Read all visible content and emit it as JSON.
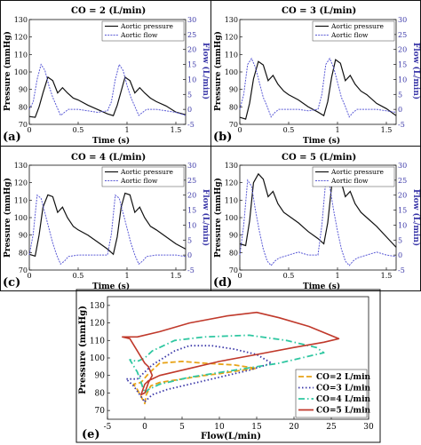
{
  "chart_data": [
    {
      "panel_letter": "(a)",
      "type": "line",
      "title": "CO = 2 (L/min)",
      "xlabel": "Time (s)",
      "ylabel": "Pressure (mmHg)",
      "y2label": "Flow (L/min)",
      "xlim": [
        0,
        1.6
      ],
      "ylim": [
        70,
        130
      ],
      "y2lim": [
        -5,
        30
      ],
      "xticks": [
        "0",
        "0.5",
        "1",
        "1.5"
      ],
      "yticks": [
        "70",
        "80",
        "90",
        "100",
        "110",
        "120",
        "130"
      ],
      "y2ticks": [
        "-5",
        "0",
        "5",
        "10",
        "15",
        "20",
        "25",
        "30"
      ],
      "legend": [
        "Aortic pressure",
        "Aortic flow"
      ],
      "legend_position": "top-right",
      "series": [
        {
          "name": "Aortic pressure",
          "axis": "left",
          "x": [
            0,
            0.06,
            0.1,
            0.14,
            0.19,
            0.24,
            0.29,
            0.34,
            0.39,
            0.45,
            0.5,
            0.6,
            0.7,
            0.8,
            0.86,
            0.9,
            0.94,
            0.98,
            1.03,
            1.08,
            1.13,
            1.18,
            1.24,
            1.3,
            1.4,
            1.5,
            1.6
          ],
          "y": [
            74.5,
            74,
            80,
            88,
            97,
            95,
            88,
            91,
            88,
            85,
            84,
            81,
            78.5,
            76,
            75,
            81,
            89,
            97,
            95,
            88,
            91,
            88,
            85,
            83,
            80.5,
            77,
            75.5
          ]
        },
        {
          "name": "Aortic flow",
          "axis": "right",
          "x": [
            0,
            0.04,
            0.08,
            0.12,
            0.16,
            0.2,
            0.24,
            0.28,
            0.32,
            0.36,
            0.4,
            0.5,
            0.6,
            0.7,
            0.8,
            0.84,
            0.88,
            0.92,
            0.96,
            1.0,
            1.04,
            1.08,
            1.12,
            1.16,
            1.2,
            1.3,
            1.4,
            1.5,
            1.6
          ],
          "y": [
            0,
            2.5,
            10,
            15,
            13,
            8,
            4,
            1,
            -2,
            -1,
            0,
            0,
            -0.5,
            -1,
            -0.5,
            2.5,
            10,
            15,
            13,
            8,
            4,
            1,
            -2,
            -1,
            0,
            0,
            -0.5,
            -1,
            -2
          ]
        }
      ]
    },
    {
      "panel_letter": "(b)",
      "type": "line",
      "title": "CO = 3 (L/min)",
      "xlabel": "Time (s)",
      "ylabel": "Pressure (mmHg)",
      "y2label": "Flow (L/min)",
      "xlim": [
        0,
        1.6
      ],
      "ylim": [
        70,
        130
      ],
      "y2lim": [
        -5,
        30
      ],
      "xticks": [
        "0",
        "0.5",
        "1",
        "1.5"
      ],
      "yticks": [
        "70",
        "80",
        "90",
        "100",
        "110",
        "120",
        "130"
      ],
      "y2ticks": [
        "-5",
        "0",
        "5",
        "10",
        "15",
        "20",
        "25",
        "30"
      ],
      "legend": [
        "Aortic pressure",
        "Aortic flow"
      ],
      "legend_position": "top-right",
      "series": [
        {
          "name": "Aortic pressure",
          "axis": "left",
          "x": [
            0,
            0.06,
            0.1,
            0.14,
            0.19,
            0.24,
            0.29,
            0.34,
            0.39,
            0.45,
            0.5,
            0.6,
            0.7,
            0.8,
            0.86,
            0.9,
            0.94,
            0.98,
            1.03,
            1.08,
            1.13,
            1.18,
            1.24,
            1.3,
            1.4,
            1.5,
            1.6
          ],
          "y": [
            74,
            73,
            82,
            96,
            106,
            104,
            95,
            98,
            93,
            89,
            87,
            84,
            80,
            77,
            75,
            83,
            97,
            107,
            105,
            95,
            98,
            93,
            89,
            87,
            82,
            79,
            75
          ]
        },
        {
          "name": "Aortic flow",
          "axis": "right",
          "x": [
            0,
            0.04,
            0.08,
            0.12,
            0.16,
            0.2,
            0.24,
            0.28,
            0.32,
            0.36,
            0.4,
            0.5,
            0.6,
            0.7,
            0.8,
            0.84,
            0.88,
            0.92,
            0.96,
            1.0,
            1.04,
            1.08,
            1.12,
            1.16,
            1.2,
            1.3,
            1.4,
            1.5,
            1.6
          ],
          "y": [
            0,
            5,
            15,
            17,
            14,
            9,
            4,
            1,
            -2.5,
            -1,
            0,
            0,
            0,
            -0.5,
            0,
            5,
            15,
            17,
            14,
            9,
            4,
            1,
            -2.5,
            -1,
            0,
            0,
            0,
            -0.5,
            -1
          ]
        }
      ]
    },
    {
      "panel_letter": "(c)",
      "type": "line",
      "title": "CO = 4 (L/min)",
      "xlabel": "Time (s)",
      "ylabel": "Pressure (mmHg)",
      "y2label": "Flow (L/min)",
      "xlim": [
        0,
        1.6
      ],
      "ylim": [
        70,
        130
      ],
      "y2lim": [
        -5,
        30
      ],
      "xticks": [
        "0",
        "0.5",
        "1",
        "1.5"
      ],
      "yticks": [
        "70",
        "80",
        "90",
        "100",
        "110",
        "120",
        "130"
      ],
      "y2ticks": [
        "-5",
        "0",
        "5",
        "10",
        "15",
        "20",
        "25",
        "30"
      ],
      "legend": [
        "Aortic pressure",
        "Aortic flow"
      ],
      "legend_position": "top-right",
      "series": [
        {
          "name": "Aortic pressure",
          "axis": "left",
          "x": [
            0,
            0.06,
            0.1,
            0.14,
            0.19,
            0.24,
            0.29,
            0.34,
            0.39,
            0.45,
            0.5,
            0.6,
            0.7,
            0.8,
            0.86,
            0.9,
            0.94,
            0.98,
            1.03,
            1.08,
            1.13,
            1.18,
            1.24,
            1.3,
            1.4,
            1.5,
            1.6
          ],
          "y": [
            79,
            78,
            90,
            106,
            113,
            112,
            103,
            106,
            100,
            95,
            93,
            90,
            86,
            82,
            79,
            89,
            106,
            114,
            113,
            103,
            106,
            100,
            95,
            93,
            89,
            85,
            82
          ]
        },
        {
          "name": "Aortic flow",
          "axis": "right",
          "x": [
            0,
            0.04,
            0.08,
            0.12,
            0.16,
            0.2,
            0.24,
            0.28,
            0.32,
            0.36,
            0.4,
            0.5,
            0.6,
            0.7,
            0.8,
            0.84,
            0.88,
            0.92,
            0.96,
            1.0,
            1.04,
            1.08,
            1.12,
            1.16,
            1.2,
            1.3,
            1.4,
            1.5,
            1.6
          ],
          "y": [
            0,
            7,
            20,
            19,
            14,
            9,
            4,
            0,
            -3,
            -2,
            -0.5,
            0,
            0,
            0,
            0,
            7,
            20,
            19,
            14,
            9,
            4,
            0,
            -3,
            -2,
            -0.5,
            0,
            0,
            0,
            -0.5
          ]
        }
      ]
    },
    {
      "panel_letter": "(d)",
      "type": "line",
      "title": "CO = 5 (L/min)",
      "xlabel": "Time (s)",
      "ylabel": "Pressure (mmHg)",
      "y2label": "Flow (L/min)",
      "xlim": [
        0,
        1.6
      ],
      "ylim": [
        70,
        130
      ],
      "y2lim": [
        -5,
        30
      ],
      "xticks": [
        "0",
        "0.5",
        "1",
        "1.5"
      ],
      "yticks": [
        "70",
        "80",
        "90",
        "100",
        "110",
        "120",
        "130"
      ],
      "y2ticks": [
        "-5",
        "0",
        "5",
        "10",
        "15",
        "20",
        "25",
        "30"
      ],
      "legend": [
        "Aortic pressure",
        "Aortic flow"
      ],
      "legend_position": "top-right",
      "series": [
        {
          "name": "Aortic pressure",
          "axis": "left",
          "x": [
            0,
            0.06,
            0.1,
            0.14,
            0.19,
            0.24,
            0.29,
            0.34,
            0.39,
            0.45,
            0.5,
            0.6,
            0.7,
            0.8,
            0.86,
            0.9,
            0.94,
            0.98,
            1.03,
            1.08,
            1.13,
            1.18,
            1.24,
            1.3,
            1.4,
            1.5,
            1.6
          ],
          "y": [
            85,
            84,
            98,
            120,
            125,
            122,
            112,
            115,
            108,
            103,
            101,
            97,
            92,
            88,
            85,
            97,
            118,
            125,
            122,
            112,
            115,
            108,
            103,
            100,
            95,
            89,
            83
          ]
        },
        {
          "name": "Aortic flow",
          "axis": "right",
          "x": [
            0,
            0.04,
            0.08,
            0.12,
            0.16,
            0.2,
            0.24,
            0.28,
            0.32,
            0.36,
            0.4,
            0.5,
            0.6,
            0.7,
            0.8,
            0.84,
            0.88,
            0.92,
            0.96,
            1.0,
            1.04,
            1.08,
            1.12,
            1.16,
            1.2,
            1.3,
            1.4,
            1.5,
            1.6
          ],
          "y": [
            0,
            10,
            25,
            23,
            15,
            8,
            2,
            -2,
            -3.5,
            -2,
            -1,
            0,
            1,
            0,
            0,
            10,
            25,
            23,
            15,
            8,
            2,
            -2,
            -3.5,
            -2,
            -1,
            0,
            1,
            0,
            -0.5
          ]
        }
      ]
    },
    {
      "panel_letter": "(e)",
      "type": "line",
      "title": "",
      "xlabel": "Flow(L/min)",
      "ylabel": "Pressure (mmHg)",
      "xlim": [
        -5,
        30
      ],
      "ylim": [
        65,
        135
      ],
      "xticks": [
        "-5",
        "0",
        "5",
        "10",
        "15",
        "20",
        "25",
        "30"
      ],
      "yticks": [
        "70",
        "80",
        "90",
        "100",
        "110",
        "120",
        "130"
      ],
      "legend": [
        "CO=2 L/min",
        "CO=3 L/min",
        "CO=4 L/min",
        "CO=5 L/min"
      ],
      "legend_position": "bottom-right",
      "series": [
        {
          "name": "CO=2 L/min",
          "color": "#e8a317",
          "style": "dashed",
          "x": [
            0,
            0.2,
            0.8,
            2,
            5,
            8,
            10,
            13,
            15,
            12,
            8,
            5,
            2,
            0.5,
            -0.5,
            -1.5,
            -1,
            -0.5,
            0
          ],
          "y": [
            74,
            79,
            84,
            86,
            88,
            90,
            91,
            93,
            94,
            96,
            97,
            98,
            97,
            91,
            86,
            85,
            82,
            78,
            74
          ]
        },
        {
          "name": "CO=3 L/min",
          "color": "#3a37a8",
          "style": "dotted",
          "x": [
            0,
            0.5,
            1,
            3,
            6,
            10,
            14,
            17,
            15,
            12,
            9,
            6,
            4,
            1,
            0,
            -0.5,
            -1,
            -2.5,
            -1.5,
            -0.5,
            0
          ],
          "y": [
            75,
            77,
            79,
            82,
            85,
            89,
            93,
            97,
            102,
            105,
            107,
            107,
            104,
            96,
            92,
            90,
            88,
            88,
            84,
            78,
            75
          ]
        },
        {
          "name": "CO=4 L/min",
          "color": "#2fc7a1",
          "style": "dashdot",
          "x": [
            0,
            0.5,
            2,
            6,
            12,
            18,
            22,
            24,
            23,
            19,
            14,
            8,
            4,
            1,
            0,
            -1,
            -2,
            -1,
            0
          ],
          "y": [
            80,
            82,
            85,
            89,
            93,
            97,
            101,
            103,
            106,
            110,
            113,
            112,
            110,
            104,
            100,
            98,
            99,
            92,
            80
          ]
        },
        {
          "name": "CO=5 L/min",
          "color": "#c0392b",
          "style": "solid",
          "x": [
            0,
            0.5,
            2,
            6,
            10,
            15,
            20,
            24,
            26,
            22,
            18,
            15,
            11,
            6,
            2,
            -1,
            -3,
            -2,
            -1,
            0,
            0.5,
            1,
            0.5,
            0,
            -0.5,
            0
          ],
          "y": [
            85,
            87,
            90,
            94,
            98,
            102,
            106,
            109,
            111,
            118,
            123,
            126,
            124,
            120,
            115,
            112,
            112,
            111,
            104,
            97,
            95,
            90,
            86,
            80,
            79,
            85
          ]
        }
      ]
    }
  ]
}
